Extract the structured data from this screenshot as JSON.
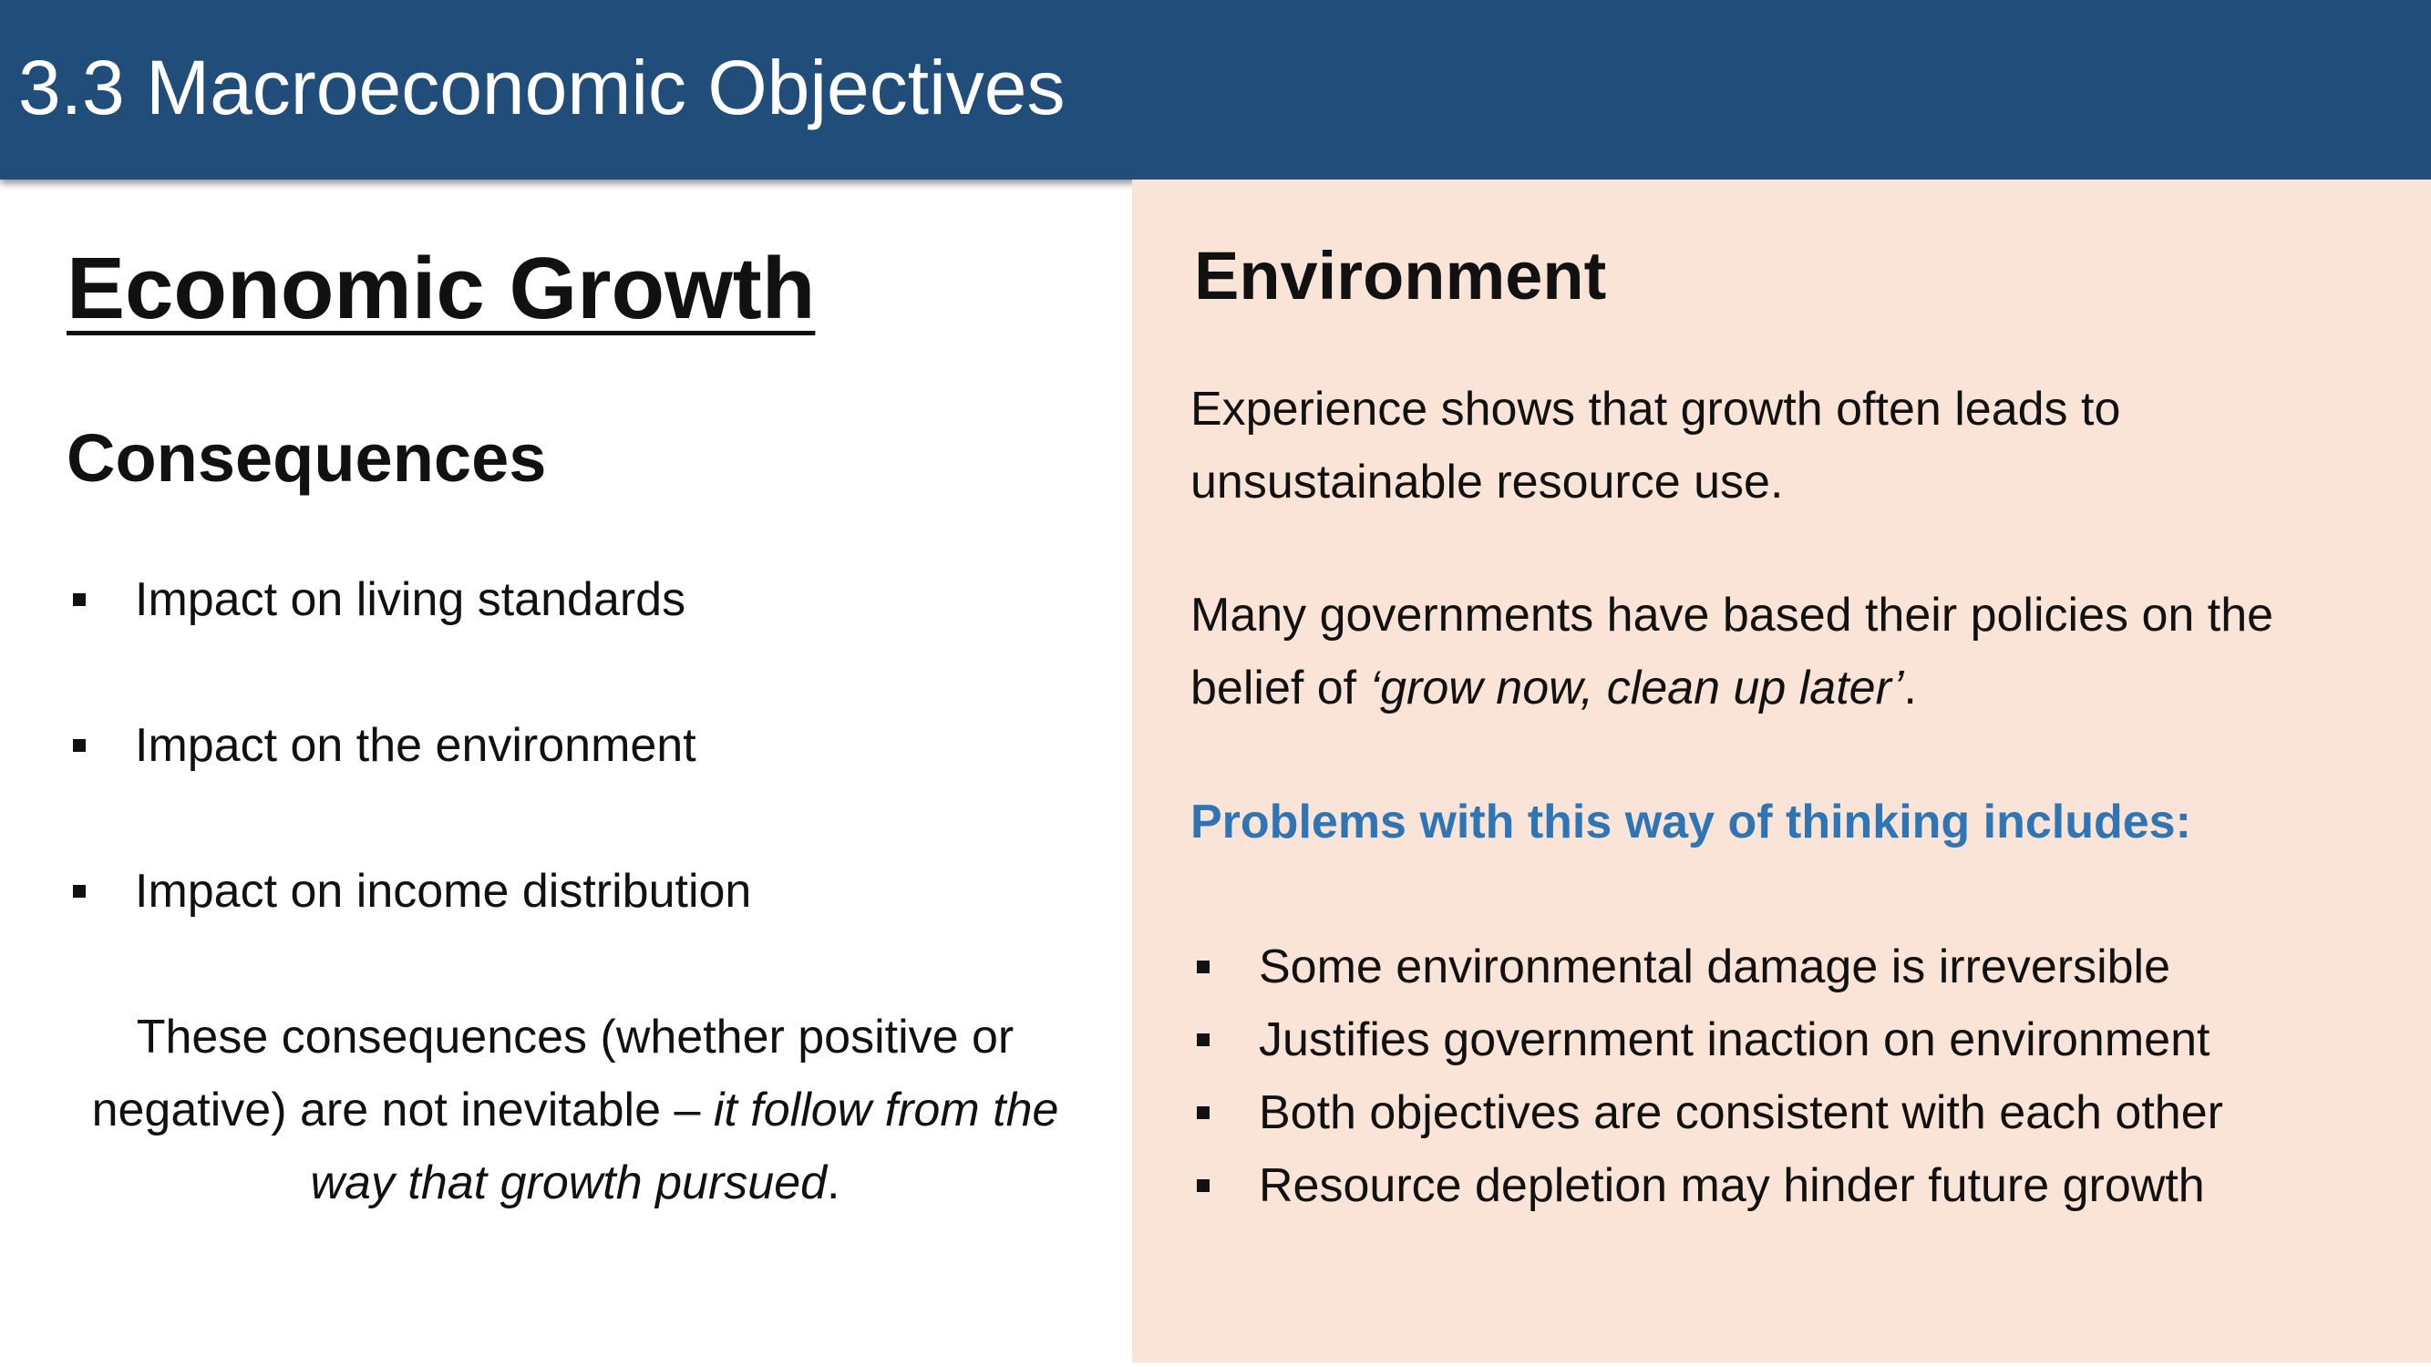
{
  "header": {
    "title": "3.3 Macroeconomic Objectives"
  },
  "left": {
    "heading": "Economic Growth",
    "subheading": "Consequences",
    "bullets": [
      "Impact on living standards",
      "Impact on the environment",
      "Impact on income distribution"
    ],
    "note": {
      "text": "These consequences (whether positive or negative) are not inevitable – ",
      "italic": "it follow from the way that growth pursued",
      "end": "."
    }
  },
  "right": {
    "heading": "Environment",
    "paragraph1": "Experience shows that growth often leads to unsustainable resource use.",
    "paragraph2": {
      "text": "Many governments have based their policies on the belief of ",
      "italic": "‘grow now, clean up later’",
      "end": "."
    },
    "problems_heading": "Problems with this way of thinking includes:",
    "bullets": [
      "Some environmental damage is irreversible",
      "Justifies government inaction on environment",
      "Both objectives are consistent with each other",
      "Resource depletion may hinder future growth"
    ]
  }
}
